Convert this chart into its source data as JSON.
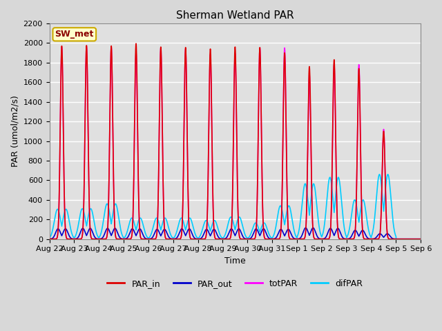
{
  "title": "Sherman Wetland PAR",
  "xlabel": "Time",
  "ylabel": "PAR (umol/m2/s)",
  "ylim": [
    0,
    2200
  ],
  "background_color": "#d8d8d8",
  "plot_bg_color": "#e0e0e0",
  "grid_color": "white",
  "legend_label": "SW_met",
  "legend_bg": "#ffffcc",
  "legend_edge": "#ccaa00",
  "series": {
    "PAR_in": {
      "color": "#dd0000",
      "lw": 1.2
    },
    "PAR_out": {
      "color": "#0000cc",
      "lw": 1.2
    },
    "totPAR": {
      "color": "#ff00ff",
      "lw": 1.2
    },
    "difPAR": {
      "color": "#00ccff",
      "lw": 1.2
    }
  },
  "xtick_labels": [
    "Aug 22",
    "Aug 23",
    "Aug 24",
    "Aug 25",
    "Aug 26",
    "Aug 27",
    "Aug 28",
    "Aug 29",
    "Aug 30",
    "Aug 31",
    "Sep 1",
    "Sep 2",
    "Sep 3",
    "Sep 4",
    "Sep 5",
    "Sep 6"
  ],
  "n_days": 15,
  "day_peaks_PAR_in": [
    1970,
    1975,
    1970,
    1995,
    1960,
    1955,
    1940,
    1960,
    1955,
    1900,
    1760,
    1830,
    1740,
    1100,
    0
  ],
  "day_peaks_totPAR": [
    1960,
    1970,
    1960,
    1900,
    1950,
    1940,
    1880,
    1895,
    1950,
    1950,
    1680,
    1780,
    1780,
    1120,
    0
  ],
  "day_peaks_PAR_out": [
    105,
    110,
    110,
    105,
    100,
    105,
    100,
    105,
    105,
    100,
    115,
    110,
    90,
    55,
    0
  ],
  "day_peaks_difPAR": [
    305,
    310,
    360,
    215,
    215,
    215,
    190,
    225,
    165,
    340,
    565,
    630,
    400,
    660,
    0
  ],
  "pts_per_day": 500
}
